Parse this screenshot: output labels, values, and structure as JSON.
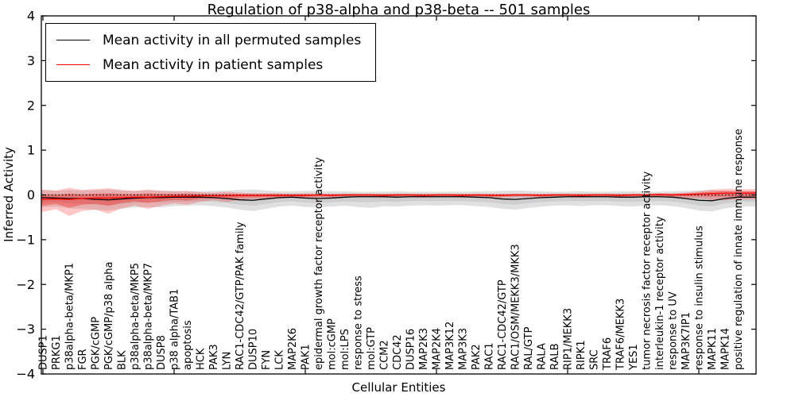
{
  "chart_data": {
    "type": "line",
    "title": "Regulation of p38-alpha and p38-beta -- 501 samples",
    "xlabel": "Cellular Entities",
    "ylabel": "Inferred Activity",
    "ylim": [
      -4,
      4
    ],
    "yticks": [
      4,
      3,
      2,
      1,
      0,
      -1,
      -2,
      -3,
      -4
    ],
    "ytick_labels": [
      "4",
      "3",
      "2",
      "1",
      "0",
      "−1",
      "−2",
      "−3",
      "−4"
    ],
    "x_major_tick_indices": [
      0,
      10,
      20,
      30,
      40,
      50
    ],
    "grid": false,
    "legend_position": "upper left",
    "zero_line": {
      "style": "dotted",
      "color": "#000000"
    },
    "categories": [
      "DUSP1",
      "PRKG1",
      "p38alpha-beta/MKP1",
      "FGR",
      "PGK/cGMP",
      "PGK/cGMP/p38 alpha",
      "BLK",
      "p38alpha-beta/MKP5",
      "p38alpha-beta/MKP7",
      "DUSP8",
      "p38 alpha/TAB1",
      "apoptosis",
      "HCK",
      "PAK3",
      "LYN",
      "RAC1-CDC42/GTP/PAK family",
      "DUSP10",
      "FYN",
      "LCK",
      "MAP2K6",
      "PAK1",
      "epidermal growth factor receptor activity",
      "mol:cGMP",
      "mol:LPS",
      "response to stress",
      "mol:GTP",
      "CCM2",
      "CDC42",
      "DUSP16",
      "MAP2K3",
      "MAP2K4",
      "MAP3K12",
      "MAP3K3",
      "PAK2",
      "RAC1",
      "RAC1-CDC42/GTP",
      "RAC1/OSM/MEKK3/MKK3",
      "RAL/GTP",
      "RALA",
      "RALB",
      "RIP1/MEKK3",
      "RIPK1",
      "SRC",
      "TRAF6",
      "TRAF6/MEKK3",
      "YES1",
      "tumor necrosis factor receptor activity",
      "interleukin-1 receptor activity",
      "response to UV",
      "MAP3K7IP1",
      "response to insulin stimulus",
      "MAPK11",
      "MAPK14",
      "positive regulation of innate immune response"
    ],
    "series": [
      {
        "name": "Mean activity in all permuted samples",
        "color": "#000000",
        "values": [
          -0.06,
          -0.07,
          -0.08,
          -0.08,
          -0.1,
          -0.11,
          -0.09,
          -0.07,
          -0.06,
          -0.06,
          -0.05,
          -0.05,
          -0.05,
          -0.06,
          -0.08,
          -0.11,
          -0.12,
          -0.09,
          -0.06,
          -0.05,
          -0.07,
          -0.08,
          -0.07,
          -0.05,
          -0.04,
          -0.04,
          -0.04,
          -0.05,
          -0.04,
          -0.04,
          -0.04,
          -0.04,
          -0.04,
          -0.05,
          -0.06,
          -0.09,
          -0.1,
          -0.08,
          -0.06,
          -0.05,
          -0.04,
          -0.04,
          -0.04,
          -0.04,
          -0.05,
          -0.05,
          -0.04,
          -0.04,
          -0.05,
          -0.08,
          -0.12,
          -0.13,
          -0.08,
          -0.05
        ]
      },
      {
        "name": "Mean activity in patient samples",
        "color": "#ff0000",
        "values": [
          -0.1,
          -0.09,
          -0.1,
          -0.08,
          -0.07,
          -0.07,
          -0.06,
          -0.05,
          -0.05,
          -0.04,
          -0.03,
          -0.03,
          -0.02,
          -0.02,
          -0.02,
          -0.01,
          -0.01,
          -0.01,
          -0.01,
          -0.01,
          -0.01,
          0,
          -0.01,
          0,
          0,
          0,
          -0.01,
          0,
          0,
          -0.01,
          0,
          0,
          -0.01,
          0,
          -0.01,
          -0.01,
          0,
          0,
          -0.01,
          0,
          0,
          -0.01,
          0,
          0,
          -0.01,
          0,
          0,
          0.01,
          0,
          0.01,
          0.02,
          0.03,
          0.04,
          0.04
        ]
      }
    ],
    "bands": [
      {
        "name": "permuted-samples-std-band",
        "series": 0,
        "color": "#000000",
        "opacity": 0.12,
        "inner_opacity": 0.08,
        "upper": [
          0.1,
          0.09,
          0.11,
          0.1,
          0.11,
          0.12,
          0.1,
          0.09,
          0.1,
          0.1,
          0.09,
          0.08,
          0.08,
          0.09,
          0.1,
          0.11,
          0.12,
          0.1,
          0.08,
          0.08,
          0.09,
          0.09,
          0.08,
          0.08,
          0.07,
          0.07,
          0.07,
          0.08,
          0.07,
          0.07,
          0.07,
          0.07,
          0.07,
          0.08,
          0.08,
          0.09,
          0.1,
          0.09,
          0.08,
          0.07,
          0.07,
          0.08,
          0.07,
          0.07,
          0.08,
          0.08,
          0.07,
          0.07,
          0.08,
          0.09,
          0.1,
          0.11,
          0.09,
          0.08
        ],
        "lower": [
          -0.28,
          -0.26,
          -0.3,
          -0.31,
          -0.33,
          -0.35,
          -0.31,
          -0.28,
          -0.27,
          -0.28,
          -0.25,
          -0.24,
          -0.23,
          -0.25,
          -0.28,
          -0.33,
          -0.36,
          -0.31,
          -0.26,
          -0.24,
          -0.27,
          -0.28,
          -0.26,
          -0.24,
          -0.27,
          -0.29,
          -0.25,
          -0.26,
          -0.24,
          -0.23,
          -0.24,
          -0.23,
          -0.23,
          -0.25,
          -0.27,
          -0.31,
          -0.33,
          -0.29,
          -0.26,
          -0.24,
          -0.23,
          -0.25,
          -0.23,
          -0.23,
          -0.25,
          -0.26,
          -0.24,
          -0.23,
          -0.25,
          -0.29,
          -0.35,
          -0.37,
          -0.3,
          -0.26
        ]
      },
      {
        "name": "patient-samples-std-band",
        "series": 1,
        "color": "#ff0000",
        "opacity": 0.22,
        "inner_opacity": 0.3,
        "upper": [
          0.12,
          0.1,
          0.16,
          0.11,
          0.13,
          0.15,
          0.11,
          0.09,
          0.12,
          0.09,
          0.08,
          0.09,
          0.06,
          0.05,
          0.07,
          0.05,
          0.04,
          0.04,
          0.04,
          0.03,
          0.04,
          0.03,
          0.03,
          0.03,
          0.03,
          0.03,
          0.03,
          0.03,
          0.03,
          0.03,
          0.03,
          0.03,
          0.03,
          0.03,
          0.03,
          0.03,
          0.03,
          0.03,
          0.03,
          0.03,
          0.03,
          0.03,
          0.03,
          0.03,
          0.03,
          0.03,
          0.03,
          0.04,
          0.04,
          0.05,
          0.08,
          0.12,
          0.14,
          0.13
        ],
        "lower": [
          -0.38,
          -0.32,
          -0.47,
          -0.36,
          -0.33,
          -0.42,
          -0.3,
          -0.24,
          -0.31,
          -0.24,
          -0.19,
          -0.22,
          -0.15,
          -0.12,
          -0.16,
          -0.11,
          -0.09,
          -0.09,
          -0.08,
          -0.06,
          -0.08,
          -0.06,
          -0.06,
          -0.05,
          -0.05,
          -0.05,
          -0.06,
          -0.05,
          -0.05,
          -0.06,
          -0.05,
          -0.05,
          -0.06,
          -0.05,
          -0.06,
          -0.06,
          -0.05,
          -0.05,
          -0.06,
          -0.05,
          -0.05,
          -0.06,
          -0.05,
          -0.05,
          -0.06,
          -0.05,
          -0.05,
          -0.05,
          -0.06,
          -0.07,
          -0.08,
          -0.11,
          -0.12,
          -0.1
        ]
      }
    ]
  }
}
